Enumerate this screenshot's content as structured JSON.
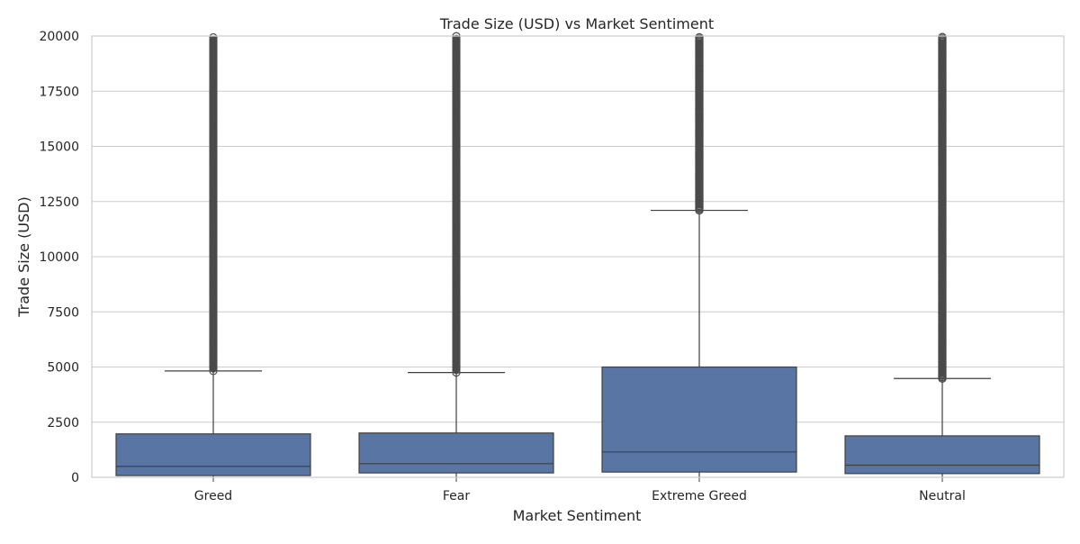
{
  "chart_data": {
    "type": "box",
    "title": "Trade Size (USD) vs Market Sentiment",
    "xlabel": "Market Sentiment",
    "ylabel": "Trade Size (USD)",
    "ylim": [
      0,
      20000
    ],
    "yticks": [
      0,
      2500,
      5000,
      7500,
      10000,
      12500,
      15000,
      17500,
      20000
    ],
    "grid": true,
    "legend": "none",
    "colors": {
      "box_fill": "#5875a4",
      "line": "#404040",
      "grid": "#cccccc",
      "frame": "#cccccc",
      "outlier": "#4a4a4a"
    },
    "categories": [
      "Greed",
      "Fear",
      "Extreme Greed",
      "Neutral"
    ],
    "boxes": [
      {
        "category": "Greed",
        "q1": 80,
        "median": 500,
        "q3": 1970,
        "whisker_low": 0,
        "whisker_high": 4820,
        "outlier_range": [
          4820,
          20000
        ],
        "outliers_dense": true
      },
      {
        "category": "Fear",
        "q1": 200,
        "median": 620,
        "q3": 2010,
        "whisker_low": 0,
        "whisker_high": 4750,
        "outlier_range": [
          4750,
          20000
        ],
        "outliers_dense": true
      },
      {
        "category": "Extreme Greed",
        "q1": 240,
        "median": 1150,
        "q3": 5000,
        "whisker_low": 0,
        "whisker_high": 12100,
        "outlier_range": [
          12100,
          20000
        ],
        "outliers_dense": false
      },
      {
        "category": "Neutral",
        "q1": 170,
        "median": 550,
        "q3": 1880,
        "whisker_low": 0,
        "whisker_high": 4480,
        "outlier_range": [
          4480,
          20000
        ],
        "outliers_dense": false
      }
    ]
  }
}
